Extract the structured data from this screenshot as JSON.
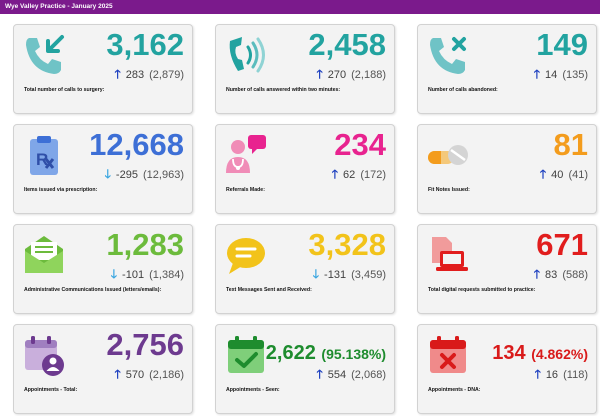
{
  "header": {
    "title": "Wye Valley Practice - January 2025"
  },
  "cards": [
    {
      "value": "3,162",
      "value_pct": "",
      "change": "283",
      "previous": "(2,879)",
      "direction": "up",
      "arrow": "🡑",
      "label": "Total number of calls to surgery:",
      "color": "#22a3a0",
      "icon": "phone-incoming-icon"
    },
    {
      "value": "2,458",
      "value_pct": "",
      "change": "270",
      "previous": "(2,188)",
      "direction": "up",
      "arrow": "🡑",
      "label": "Number of calls answered within two minutes:",
      "color": "#22a3a0",
      "icon": "phone-ringing-icon"
    },
    {
      "value": "149",
      "value_pct": "",
      "change": "14",
      "previous": "(135)",
      "direction": "up",
      "arrow": "🡑",
      "label": "Number of calls abandoned:",
      "color": "#22a3a0",
      "icon": "phone-missed-icon"
    },
    {
      "value": "12,668",
      "value_pct": "",
      "change": "-295",
      "previous": "(12,963)",
      "direction": "down",
      "arrow": "🡓",
      "label": "Items issued via prescription:",
      "color": "#3d6fd6",
      "icon": "prescription-icon"
    },
    {
      "value": "234",
      "value_pct": "",
      "change": "62",
      "previous": "(172)",
      "direction": "up",
      "arrow": "🡑",
      "label": "Referrals Made:",
      "color": "#e8238f",
      "icon": "doctor-referral-icon"
    },
    {
      "value": "81",
      "value_pct": "",
      "change": "40",
      "previous": "(41)",
      "direction": "up",
      "arrow": "🡑",
      "label": "Fit Notes Issued:",
      "color": "#f39c1d",
      "icon": "pills-icon"
    },
    {
      "value": "1,283",
      "value_pct": "",
      "change": "-101",
      "previous": "(1,384)",
      "direction": "down",
      "arrow": "🡓",
      "label": "Administrative Communications Issued (letters/emails):",
      "color": "#6cbb3c",
      "icon": "envelope-icon"
    },
    {
      "value": "3,328",
      "value_pct": "",
      "change": "-131",
      "previous": "(3,459)",
      "direction": "down",
      "arrow": "🡓",
      "label": "Text Messages Sent and Received:",
      "color": "#f2c31a",
      "icon": "chat-bubble-icon"
    },
    {
      "value": "671",
      "value_pct": "",
      "change": "83",
      "previous": "(588)",
      "direction": "up",
      "arrow": "🡑",
      "label": "Total digital requests submitted to practice:",
      "color": "#e11d1d",
      "icon": "laptop-document-icon"
    },
    {
      "value": "2,756",
      "value_pct": "",
      "change": "570",
      "previous": "(2,186)",
      "direction": "up",
      "arrow": "🡑",
      "label": "Appointments - Total:",
      "color": "#6d3a8f",
      "icon": "calendar-person-icon"
    },
    {
      "value": "2,622",
      "value_pct": "(95.138%)",
      "change": "554",
      "previous": "(2,068)",
      "direction": "up",
      "arrow": "🡑",
      "label": "Appointments - Seen:",
      "color": "#1e8c2e",
      "icon": "calendar-check-icon"
    },
    {
      "value": "134",
      "value_pct": "(4.862%)",
      "change": "16",
      "previous": "(118)",
      "direction": "up",
      "arrow": "🡑",
      "label": "Appointments - DNA:",
      "color": "#d91a1a",
      "icon": "calendar-cross-icon"
    }
  ]
}
